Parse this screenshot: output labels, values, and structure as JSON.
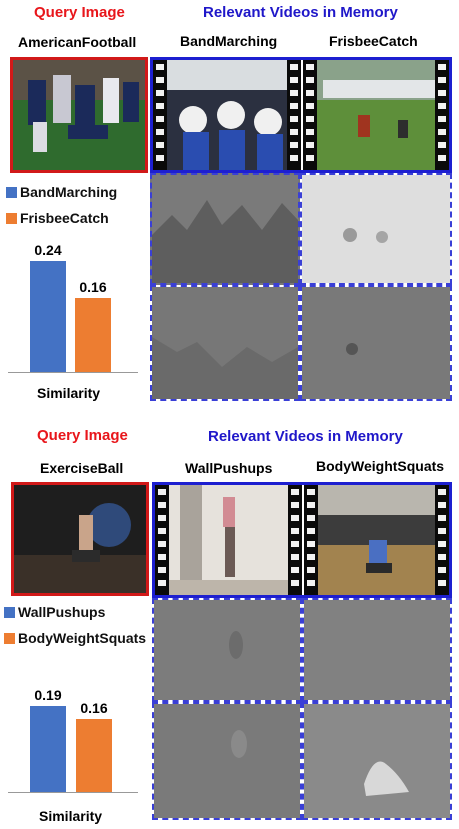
{
  "panels": [
    {
      "query_header": "Query Image",
      "memory_header": "Relevant Videos in Memory",
      "query_label": "AmericanFootball",
      "video_labels": [
        "BandMarching",
        "FrisbeeCatch"
      ],
      "legend": [
        "BandMarching",
        "FrisbeeCatch"
      ],
      "xlabel": "Similarity",
      "chart_data": {
        "type": "bar",
        "categories": [
          "BandMarching",
          "FrisbeeCatch"
        ],
        "values": [
          0.24,
          0.16
        ],
        "value_labels": [
          "0.24",
          "0.16"
        ],
        "xlabel": "Similarity",
        "ylim": [
          0,
          0.28
        ],
        "colors": [
          "#4472c4",
          "#ed7d31"
        ]
      }
    },
    {
      "query_header": "Query Image",
      "memory_header": "Relevant Videos in Memory",
      "query_label": "ExerciseBall",
      "video_labels": [
        "WallPushups",
        "BodyWeightSquats"
      ],
      "legend": [
        "WallPushups",
        "BodyWeightSquats"
      ],
      "xlabel": "Similarity",
      "chart_data": {
        "type": "bar",
        "categories": [
          "WallPushups",
          "BodyWeightSquats"
        ],
        "values": [
          0.19,
          0.16
        ],
        "value_labels": [
          "0.19",
          "0.16"
        ],
        "xlabel": "Similarity",
        "ylim": [
          0,
          0.22
        ],
        "colors": [
          "#4472c4",
          "#ed7d31"
        ]
      }
    }
  ],
  "colors": {
    "query_red": "#e8161b",
    "memory_blue": "#1f17c9",
    "bar_blue": "#4472c4",
    "bar_orange": "#ed7d31"
  }
}
